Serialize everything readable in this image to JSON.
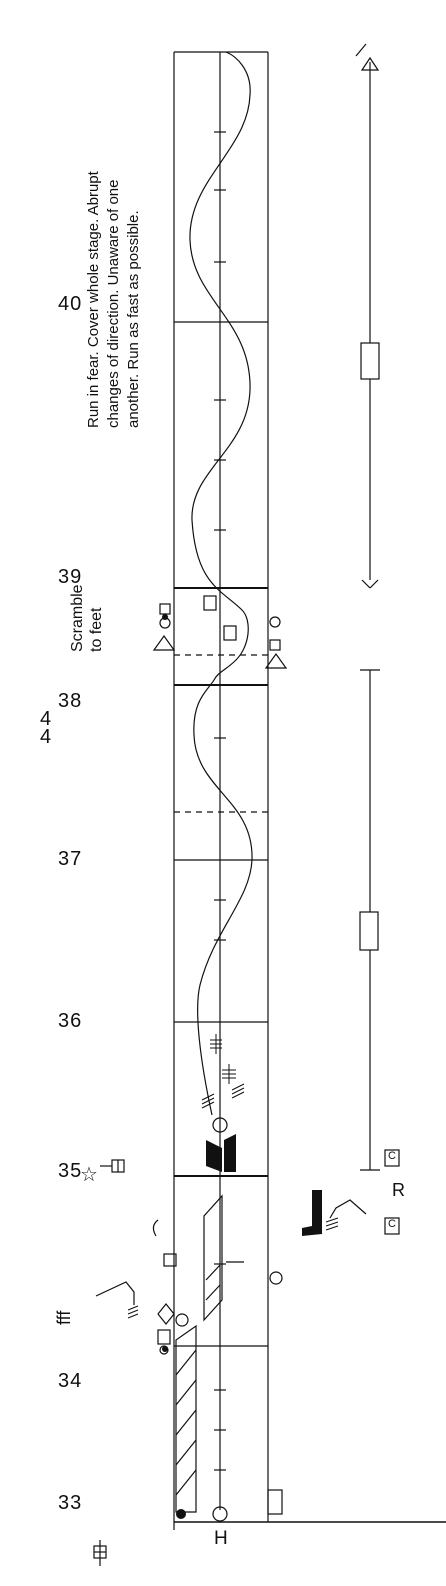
{
  "score": {
    "measures": [
      "33",
      "34",
      "35",
      "36",
      "37",
      "38",
      "39",
      "40"
    ],
    "time_signature": {
      "top": "4",
      "bottom": "4"
    },
    "dynamic": "fff",
    "center_line_label": "H",
    "scramble_note": [
      "Scramble",
      "to feet"
    ],
    "instructions": [
      "Run in fear.  Cover whole stage.  Abrupt",
      "changes of direction.  Unaware of one",
      "another.  Run as fast as possible."
    ],
    "side_letter": "R",
    "side_glyph_top": "C",
    "side_glyph_bottom": "C",
    "star_glyph": "☆",
    "icons": [
      "star-icon",
      "stage-pin-icon",
      "turn-sign-icon",
      "path-sign-icon"
    ]
  }
}
